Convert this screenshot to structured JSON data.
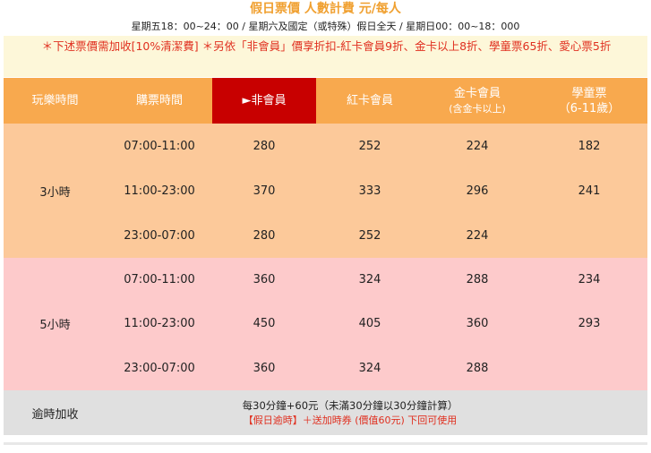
{
  "header": {
    "title": "假日票價 人數計費 元/每人",
    "subtitle": "星期五18：00~24：00 / 星期六及國定（或特殊）假日全天 / 星期日00：00~18：000"
  },
  "notice": "＊下述票價需加收[10%清潔費] ＊另依「非會員」價享折扣-紅卡會員9折、金卡以上8折、學童票65折、愛心票5折",
  "table": {
    "headers": {
      "duration": "玩樂時間",
      "time": "購票時間",
      "non_member": "►非會員",
      "red_card": "紅卡會員",
      "gold_card": "金卡會員",
      "gold_card_sub": "(含金卡以上)",
      "student": "學童票",
      "student_sub": "（6-11歲）"
    },
    "groups": [
      {
        "duration": "3小時",
        "rows": [
          {
            "time": "07:00-11:00",
            "non_member": "280",
            "red_card": "252",
            "gold_card": "224",
            "student": "182"
          },
          {
            "time": "11:00-23:00",
            "non_member": "370",
            "red_card": "333",
            "gold_card": "296",
            "student": "241"
          },
          {
            "time": "23:00-07:00",
            "non_member": "280",
            "red_card": "252",
            "gold_card": "224",
            "student": ""
          }
        ]
      },
      {
        "duration": "5小時",
        "rows": [
          {
            "time": "07:00-11:00",
            "non_member": "360",
            "red_card": "324",
            "gold_card": "288",
            "student": "234"
          },
          {
            "time": "11:00-23:00",
            "non_member": "450",
            "red_card": "405",
            "gold_card": "360",
            "student": "293"
          },
          {
            "time": "23:00-07:00",
            "non_member": "360",
            "red_card": "324",
            "gold_card": "288",
            "student": ""
          }
        ]
      }
    ]
  },
  "overtime": {
    "label": "逾時加收",
    "line1": "每30分鐘+60元（未滿30分鐘以30分鐘計算）",
    "line2": "【假日逾時】＋送加時券 (價值60元) 下回可使用"
  },
  "colors": {
    "header_orange": "#f8a94e",
    "active_red": "#c80000",
    "group3_bg": "#fcc99a",
    "group5_bg": "#fdcacb",
    "notice_text": "#e03020",
    "title_text": "#f0a030"
  }
}
